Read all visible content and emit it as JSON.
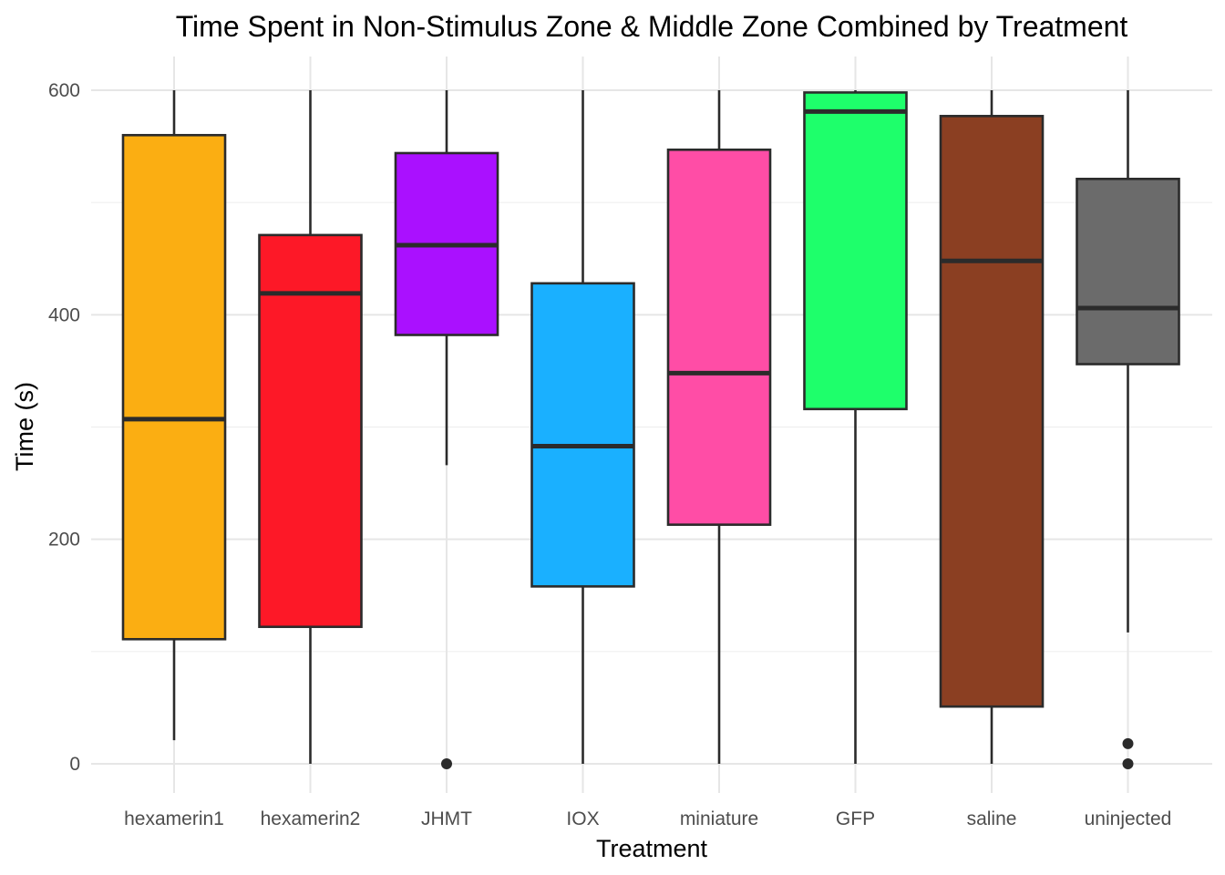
{
  "chart_data": {
    "type": "boxplot",
    "title": "Time Spent in Non-Stimulus Zone & Middle Zone Combined by Treatment",
    "xlabel": "Treatment",
    "ylabel": "Time (s)",
    "ylim": [
      -25,
      625
    ],
    "yticks": [
      0,
      200,
      400,
      600
    ],
    "grid": true,
    "legend": "none",
    "categories": [
      "hexamerin1",
      "hexamerin2",
      "JHMT",
      "IOX",
      "miniature",
      "GFP",
      "saline",
      "uninjected"
    ],
    "boxes": [
      {
        "name": "hexamerin1",
        "color": "#FBAE12",
        "whisker_low": 21,
        "q1": 111,
        "median": 307,
        "q3": 560,
        "whisker_high": 600,
        "outliers": []
      },
      {
        "name": "hexamerin2",
        "color": "#FD1827",
        "whisker_low": 0,
        "q1": 122,
        "median": 419,
        "q3": 471,
        "whisker_high": 600,
        "outliers": []
      },
      {
        "name": "JHMT",
        "color": "#AA10FF",
        "whisker_low": 266,
        "q1": 382,
        "median": 462,
        "q3": 544,
        "whisker_high": 600,
        "outliers": [
          0
        ]
      },
      {
        "name": "IOX",
        "color": "#1AB0FF",
        "whisker_low": 0,
        "q1": 158,
        "median": 283,
        "q3": 428,
        "whisker_high": 600,
        "outliers": []
      },
      {
        "name": "miniature",
        "color": "#FF4DA6",
        "whisker_low": 0,
        "q1": 213,
        "median": 348,
        "q3": 547,
        "whisker_high": 600,
        "outliers": []
      },
      {
        "name": "GFP",
        "color": "#1EFF6B",
        "whisker_low": 0,
        "q1": 316,
        "median": 581,
        "q3": 598,
        "whisker_high": 600,
        "outliers": []
      },
      {
        "name": "saline",
        "color": "#8B3F22",
        "whisker_low": 0,
        "q1": 51,
        "median": 448,
        "q3": 577,
        "whisker_high": 600,
        "outliers": []
      },
      {
        "name": "uninjected",
        "color": "#6B6B6B",
        "whisker_low": 117,
        "q1": 356,
        "median": 406,
        "q3": 521,
        "whisker_high": 600,
        "outliers": [
          0,
          18
        ]
      }
    ]
  }
}
